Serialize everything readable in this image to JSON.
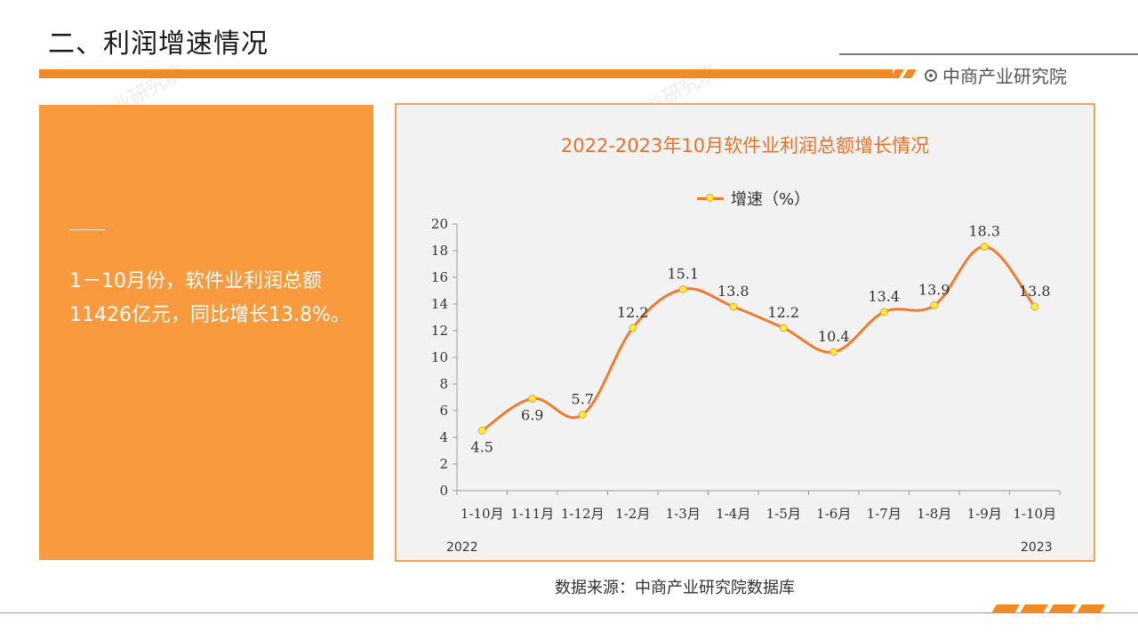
{
  "header": {
    "title": "二、利润增速情况",
    "brand": "中商产业研究院"
  },
  "summary": {
    "text": "1－10月份，软件业利润总额11426亿元，同比增长13.8%。"
  },
  "source": "数据来源：中商产业研究院数据库",
  "colors": {
    "accent": "#f08a24",
    "panel": "#f99a3f",
    "line": "#ee7d31",
    "marker": "#ffef3a"
  },
  "chart_data": {
    "type": "line",
    "title": "2022-2023年10月软件业利润总额增长情况",
    "categories": [
      "1-10月",
      "1-11月",
      "1-12月",
      "1-2月",
      "1-3月",
      "1-4月",
      "1-5月",
      "1-6月",
      "1-7月",
      "1-8月",
      "1-9月",
      "1-10月"
    ],
    "series": [
      {
        "name": "增速（%）",
        "values": [
          4.5,
          6.9,
          5.7,
          12.2,
          15.1,
          13.8,
          12.2,
          10.4,
          13.4,
          13.9,
          18.3,
          13.8
        ]
      }
    ],
    "year_labels": {
      "start": "2022",
      "end": "2023"
    },
    "ylim": [
      0,
      20
    ],
    "yticks": [
      0,
      2,
      4,
      6,
      8,
      10,
      12,
      14,
      16,
      18,
      20
    ],
    "legend": "top",
    "grid": false,
    "smooth": true
  }
}
